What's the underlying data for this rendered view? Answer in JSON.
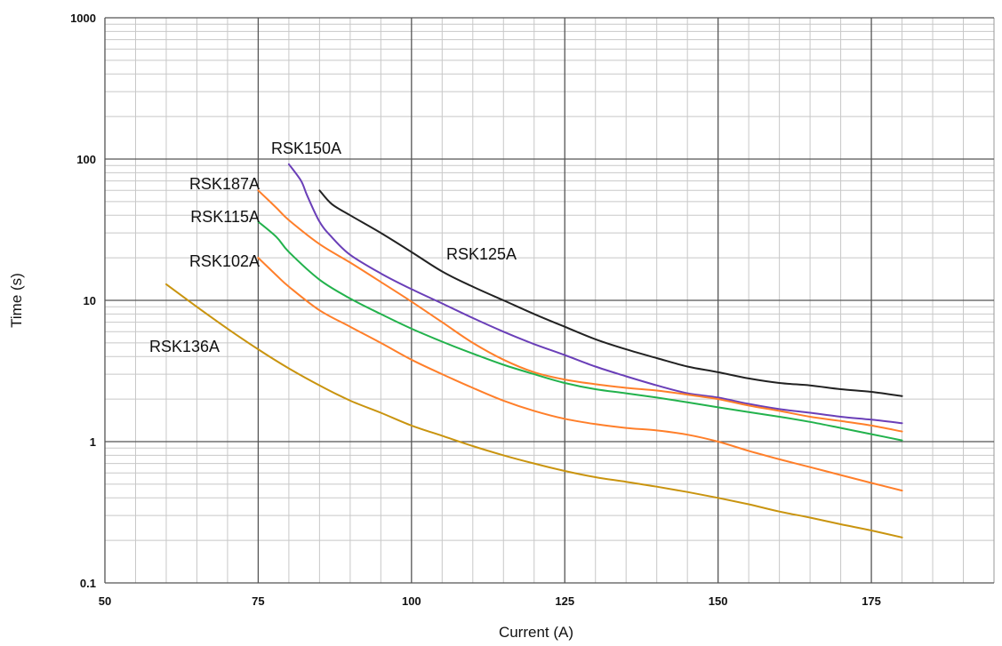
{
  "chart_data": {
    "type": "line",
    "title": "",
    "xlabel": "Current (A)",
    "ylabel": "Time (s)",
    "xlim": [
      50,
      195
    ],
    "ylim": [
      0.1,
      1000
    ],
    "yscale": "log",
    "grid": true,
    "x_ticks": [
      "50",
      "75",
      "100",
      "125",
      "150",
      "175"
    ],
    "y_ticks": [
      "0.1",
      "1",
      "10",
      "100",
      "1000"
    ],
    "series": [
      {
        "name": "RSK125A",
        "color": "#222222",
        "points": [
          [
            85,
            60
          ],
          [
            87,
            48
          ],
          [
            90,
            40
          ],
          [
            95,
            30
          ],
          [
            100,
            22
          ],
          [
            105,
            16
          ],
          [
            110,
            12.5
          ],
          [
            115,
            10
          ],
          [
            120,
            8
          ],
          [
            125,
            6.5
          ],
          [
            130,
            5.3
          ],
          [
            135,
            4.5
          ],
          [
            140,
            3.9
          ],
          [
            145,
            3.4
          ],
          [
            150,
            3.1
          ],
          [
            155,
            2.8
          ],
          [
            160,
            2.6
          ],
          [
            165,
            2.5
          ],
          [
            170,
            2.35
          ],
          [
            175,
            2.25
          ],
          [
            180,
            2.1
          ]
        ]
      },
      {
        "name": "RSK150A",
        "color": "#6a3fb8",
        "points": [
          [
            80,
            92
          ],
          [
            82,
            70
          ],
          [
            83,
            55
          ],
          [
            85,
            36
          ],
          [
            87,
            28
          ],
          [
            90,
            21
          ],
          [
            95,
            15.5
          ],
          [
            100,
            12
          ],
          [
            105,
            9.5
          ],
          [
            110,
            7.5
          ],
          [
            115,
            6
          ],
          [
            120,
            4.9
          ],
          [
            125,
            4.1
          ],
          [
            130,
            3.4
          ],
          [
            135,
            2.9
          ],
          [
            140,
            2.5
          ],
          [
            145,
            2.2
          ],
          [
            150,
            2.05
          ],
          [
            155,
            1.85
          ],
          [
            160,
            1.7
          ],
          [
            165,
            1.6
          ],
          [
            170,
            1.5
          ],
          [
            175,
            1.43
          ],
          [
            180,
            1.35
          ]
        ]
      },
      {
        "name": "RSK187A",
        "color": "#ff7f2a",
        "points": [
          [
            75,
            60
          ],
          [
            78,
            45
          ],
          [
            80,
            37
          ],
          [
            85,
            25
          ],
          [
            90,
            18.5
          ],
          [
            95,
            13.5
          ],
          [
            100,
            9.8
          ],
          [
            105,
            7
          ],
          [
            110,
            5
          ],
          [
            115,
            3.8
          ],
          [
            120,
            3.1
          ],
          [
            125,
            2.75
          ],
          [
            130,
            2.55
          ],
          [
            135,
            2.4
          ],
          [
            140,
            2.3
          ],
          [
            145,
            2.15
          ],
          [
            150,
            2
          ],
          [
            155,
            1.8
          ],
          [
            160,
            1.65
          ],
          [
            165,
            1.5
          ],
          [
            170,
            1.4
          ],
          [
            175,
            1.3
          ],
          [
            180,
            1.18
          ]
        ]
      },
      {
        "name": "RSK115A",
        "color": "#22b24c",
        "points": [
          [
            75,
            36
          ],
          [
            78,
            28
          ],
          [
            80,
            22
          ],
          [
            85,
            14
          ],
          [
            90,
            10.3
          ],
          [
            95,
            8
          ],
          [
            100,
            6.3
          ],
          [
            105,
            5.1
          ],
          [
            110,
            4.2
          ],
          [
            115,
            3.5
          ],
          [
            120,
            3
          ],
          [
            125,
            2.6
          ],
          [
            130,
            2.35
          ],
          [
            135,
            2.2
          ],
          [
            140,
            2.05
          ],
          [
            145,
            1.9
          ],
          [
            150,
            1.75
          ],
          [
            155,
            1.62
          ],
          [
            160,
            1.5
          ],
          [
            165,
            1.38
          ],
          [
            170,
            1.25
          ],
          [
            175,
            1.13
          ],
          [
            180,
            1.02
          ]
        ]
      },
      {
        "name": "RSK102A",
        "color": "#ff7f2a",
        "points": [
          [
            75,
            20
          ],
          [
            78,
            15
          ],
          [
            80,
            12.5
          ],
          [
            85,
            8.5
          ],
          [
            90,
            6.5
          ],
          [
            95,
            5
          ],
          [
            100,
            3.8
          ],
          [
            105,
            3
          ],
          [
            110,
            2.4
          ],
          [
            115,
            1.95
          ],
          [
            120,
            1.65
          ],
          [
            125,
            1.45
          ],
          [
            130,
            1.33
          ],
          [
            135,
            1.25
          ],
          [
            140,
            1.2
          ],
          [
            145,
            1.12
          ],
          [
            150,
            1
          ],
          [
            155,
            0.86
          ],
          [
            160,
            0.75
          ],
          [
            165,
            0.66
          ],
          [
            170,
            0.58
          ],
          [
            175,
            0.51
          ],
          [
            180,
            0.45
          ]
        ]
      },
      {
        "name": "RSK136A",
        "color": "#c9940f",
        "points": [
          [
            60,
            13
          ],
          [
            65,
            9
          ],
          [
            70,
            6.3
          ],
          [
            75,
            4.5
          ],
          [
            80,
            3.3
          ],
          [
            85,
            2.5
          ],
          [
            90,
            1.95
          ],
          [
            95,
            1.6
          ],
          [
            100,
            1.3
          ],
          [
            105,
            1.1
          ],
          [
            110,
            0.93
          ],
          [
            115,
            0.8
          ],
          [
            120,
            0.7
          ],
          [
            125,
            0.62
          ],
          [
            130,
            0.56
          ],
          [
            135,
            0.52
          ],
          [
            140,
            0.48
          ],
          [
            145,
            0.44
          ],
          [
            150,
            0.4
          ],
          [
            155,
            0.36
          ],
          [
            160,
            0.32
          ],
          [
            165,
            0.29
          ],
          [
            170,
            0.26
          ],
          [
            175,
            0.235
          ],
          [
            180,
            0.21
          ]
        ]
      }
    ]
  }
}
